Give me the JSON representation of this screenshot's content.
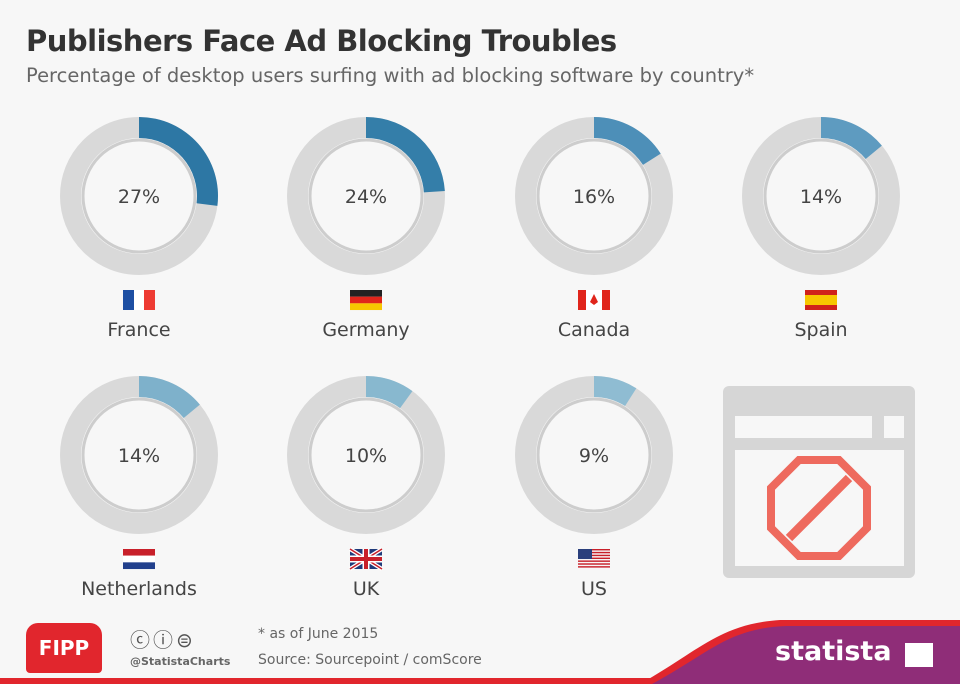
{
  "title": "Publishers Face Ad Blocking Troubles",
  "subtitle": "Percentage of desktop users surfing with ad blocking software by country*",
  "chart_data": {
    "type": "donut",
    "categories": [
      "France",
      "Germany",
      "Canada",
      "Spain",
      "Netherlands",
      "UK",
      "US"
    ],
    "values": [
      27,
      24,
      16,
      14,
      14,
      10,
      9
    ],
    "labels": [
      "27%",
      "24%",
      "16%",
      "14%",
      "14%",
      "10%",
      "9%"
    ],
    "colors": [
      "#2d77a4",
      "#347ea9",
      "#4d8fb8",
      "#5e9bc0",
      "#7eb1cb",
      "#88b8cf",
      "#8fbcd2"
    ],
    "track_color": "#d9d9d9"
  },
  "footer": {
    "note": "* as of June 2015",
    "source": "Source: Sourcepoint / comScore",
    "handle": "@StatistaCharts",
    "fipp_logo": "FIPP",
    "statista_logo": "statista"
  }
}
